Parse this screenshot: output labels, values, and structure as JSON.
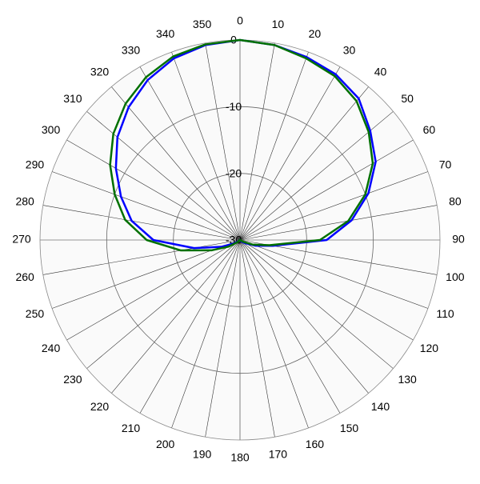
{
  "chart_data": {
    "type": "polar",
    "theta": [
      0,
      10,
      20,
      30,
      40,
      50,
      60,
      70,
      80,
      90,
      100,
      110,
      120,
      130,
      140,
      150,
      160,
      170,
      180,
      190,
      200,
      210,
      220,
      230,
      240,
      250,
      260,
      270,
      280,
      290,
      300,
      310,
      320,
      330,
      340,
      350
    ],
    "rlim": [
      -30,
      0
    ],
    "rticks": [
      -30,
      -20,
      -10,
      0
    ],
    "grid": true,
    "series": [
      {
        "color": "#0000ff",
        "values": [
          0,
          -0.3,
          -0.8,
          -1.3,
          -2.3,
          -4.5,
          -6.5,
          -9.5,
          -13,
          -17,
          -25,
          -27.5,
          -29,
          -29.5,
          -29.8,
          -30,
          -30,
          -30,
          -30,
          -30,
          -30,
          -30,
          -30,
          -29.8,
          -29,
          -27,
          -23,
          -17,
          -13.5,
          -11,
          -8.5,
          -6,
          -4,
          -2.3,
          -1,
          -0.3
        ]
      },
      {
        "color": "#007000",
        "values": [
          0,
          -0.3,
          -1,
          -1.6,
          -2.8,
          -4.8,
          -7,
          -10,
          -13.5,
          -18,
          -25.5,
          -28,
          -29.5,
          -30,
          -30,
          -30,
          -30,
          -30,
          -30,
          -30,
          -30,
          -30,
          -30,
          -29.5,
          -28,
          -25.5,
          -21,
          -16,
          -12.5,
          -10,
          -7.5,
          -5.2,
          -3.3,
          -1.8,
          -0.7,
          -0.2
        ]
      }
    ]
  }
}
